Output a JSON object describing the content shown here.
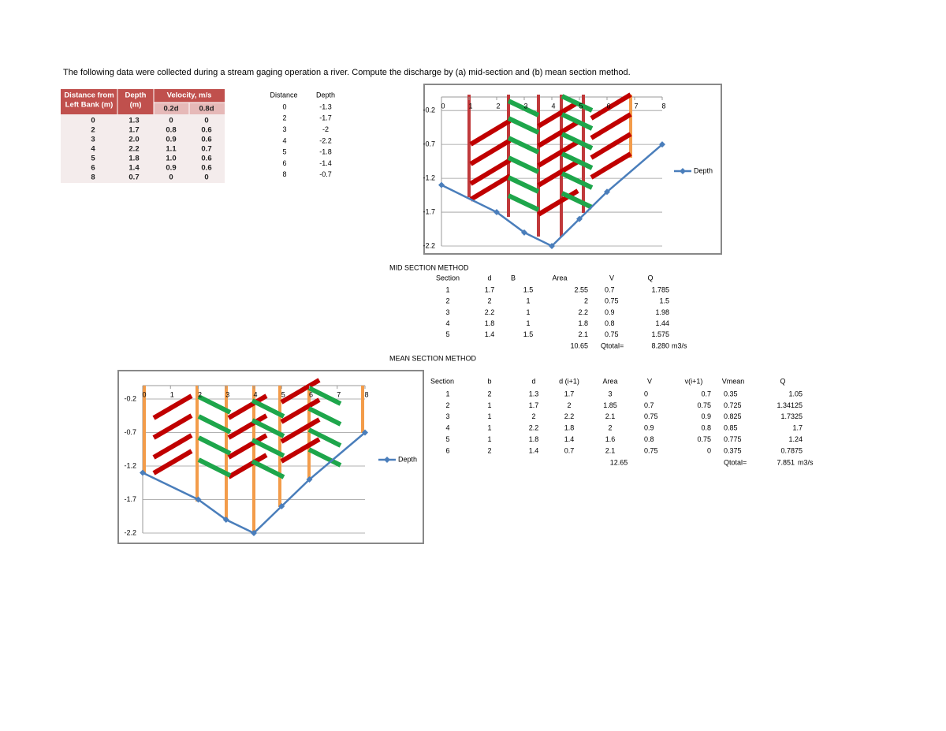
{
  "header": {
    "text": "The following data were collected during a stream gaging operation a river. Compute the discharge by (a) mid-section and (b) mean section method."
  },
  "velocity_table": {
    "headers": [
      [
        "Distance from",
        "Left Bank (m)"
      ],
      [
        "Depth",
        "(m)"
      ],
      [
        "Velocity, m/s"
      ]
    ],
    "subheaders": [
      "0.2d",
      "0.8d"
    ],
    "rows": [
      [
        "0",
        "1.3",
        "0",
        "0"
      ],
      [
        "2",
        "1.7",
        "0.8",
        "0.6"
      ],
      [
        "3",
        "2.0",
        "0.9",
        "0.6"
      ],
      [
        "4",
        "2.2",
        "1.1",
        "0.7"
      ],
      [
        "5",
        "1.8",
        "1.0",
        "0.6"
      ],
      [
        "6",
        "1.4",
        "0.9",
        "0.6"
      ],
      [
        "8",
        "0.7",
        "0",
        "0"
      ]
    ]
  },
  "depth_table": {
    "headers": [
      "Distance",
      "Depth"
    ],
    "rows": [
      [
        "0",
        "-1.3"
      ],
      [
        "2",
        "-1.7"
      ],
      [
        "3",
        "-2"
      ],
      [
        "4",
        "-2.2"
      ],
      [
        "5",
        "-1.8"
      ],
      [
        "6",
        "-1.4"
      ],
      [
        "8",
        "-0.7"
      ]
    ]
  },
  "chart_data": [
    {
      "type": "line",
      "x": [
        0,
        2,
        3,
        4,
        5,
        6,
        8
      ],
      "series": [
        {
          "name": "Depth",
          "color": "#4a7ebb",
          "values": [
            -1.3,
            -1.7,
            -2,
            -2.2,
            -1.8,
            -1.4,
            -0.7
          ]
        }
      ],
      "xlim": [
        0,
        8
      ],
      "xticks": [
        0,
        1,
        2,
        3,
        4,
        5,
        6,
        7,
        8
      ],
      "ylim": [
        -2.2,
        0
      ],
      "yticks": [
        -0.2,
        -0.7,
        -1.2,
        -1.7,
        -2.2
      ],
      "grid": true,
      "legend": "right"
    },
    {
      "type": "line",
      "x": [
        0,
        2,
        3,
        4,
        5,
        6,
        8
      ],
      "series": [
        {
          "name": "Depth",
          "color": "#4a7ebb",
          "values": [
            -1.3,
            -1.7,
            -2,
            -2.2,
            -1.8,
            -1.4,
            -0.7
          ]
        }
      ],
      "xlim": [
        0,
        8
      ],
      "xticks": [
        0,
        1,
        2,
        3,
        4,
        5,
        6,
        7,
        8
      ],
      "ylim": [
        -2.2,
        0
      ],
      "yticks": [
        -0.2,
        -0.7,
        -1.2,
        -1.7,
        -2.2
      ],
      "grid": true,
      "legend": "right"
    }
  ],
  "mid_section": {
    "title": "MID SECTION METHOD",
    "headers": [
      "Section",
      "d",
      "B",
      "Area",
      "V",
      "Q"
    ],
    "rows": [
      [
        "1",
        "1.7",
        "1.5",
        "2.55",
        "0.7",
        "1.785"
      ],
      [
        "2",
        "2",
        "1",
        "2",
        "0.75",
        "1.5"
      ],
      [
        "3",
        "2.2",
        "1",
        "2.2",
        "0.9",
        "1.98"
      ],
      [
        "4",
        "1.8",
        "1",
        "1.8",
        "0.8",
        "1.44"
      ],
      [
        "5",
        "1.4",
        "1.5",
        "2.1",
        "0.75",
        "1.575"
      ]
    ],
    "total_area": "10.65",
    "total_label": "Qtotal=",
    "total_q": "8.280",
    "unit": "m3/s"
  },
  "mean_section": {
    "title": "MEAN SECTION METHOD",
    "headers": [
      "Section",
      "b",
      "d",
      "d (i+1)",
      "Area",
      "V",
      "v(i+1)",
      "Vmean",
      "Q"
    ],
    "rows": [
      [
        "1",
        "2",
        "1.3",
        "1.7",
        "3",
        "0",
        "0.7",
        "0.35",
        "1.05"
      ],
      [
        "2",
        "1",
        "1.7",
        "2",
        "1.85",
        "0.7",
        "0.75",
        "0.725",
        "1.34125"
      ],
      [
        "3",
        "1",
        "2",
        "2.2",
        "2.1",
        "0.75",
        "0.9",
        "0.825",
        "1.7325"
      ],
      [
        "4",
        "1",
        "2.2",
        "1.8",
        "2",
        "0.9",
        "0.8",
        "0.85",
        "1.7"
      ],
      [
        "5",
        "1",
        "1.8",
        "1.4",
        "1.6",
        "0.8",
        "0.75",
        "0.775",
        "1.24"
      ],
      [
        "6",
        "2",
        "1.4",
        "0.7",
        "2.1",
        "0.75",
        "0",
        "0.375",
        "0.7875"
      ]
    ],
    "total_area": "12.65",
    "total_label": "Qtotal=",
    "total_q": "7.851",
    "unit": "m3/s"
  }
}
